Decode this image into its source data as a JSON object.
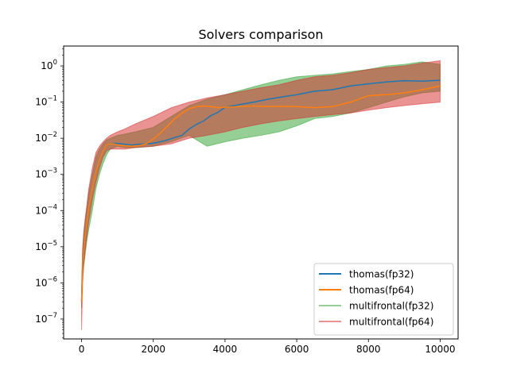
{
  "chart_data": {
    "type": "line",
    "title": "Solvers comparison",
    "xlabel": "",
    "ylabel": "",
    "xlim": [
      -500,
      10500
    ],
    "ylim_log10": [
      -7.55,
      0.55
    ],
    "y_scale": "log",
    "grid": false,
    "legend_placement": "lower-right",
    "x_ticks": [
      {
        "value": 0,
        "label": "0"
      },
      {
        "value": 2000,
        "label": "2000"
      },
      {
        "value": 4000,
        "label": "4000"
      },
      {
        "value": 6000,
        "label": "6000"
      },
      {
        "value": 8000,
        "label": "8000"
      },
      {
        "value": 10000,
        "label": "10000"
      }
    ],
    "y_ticks": [
      {
        "exp": -7,
        "label": "10",
        "sup": "−7"
      },
      {
        "exp": -6,
        "label": "10",
        "sup": "−6"
      },
      {
        "exp": -5,
        "label": "10",
        "sup": "−5"
      },
      {
        "exp": -4,
        "label": "10",
        "sup": "−4"
      },
      {
        "exp": -3,
        "label": "10",
        "sup": "−3"
      },
      {
        "exp": -2,
        "label": "10",
        "sup": "−2"
      },
      {
        "exp": -1,
        "label": "10",
        "sup": "−1"
      },
      {
        "exp": 0,
        "label": "10",
        "sup": "0"
      }
    ],
    "series": [
      {
        "name": "thomas(fp32)",
        "color": "#1f77b4",
        "alpha": 1,
        "x": [
          0,
          30,
          60,
          100,
          150,
          200,
          300,
          400,
          500,
          600,
          700,
          800,
          900,
          1000,
          1200,
          1400,
          1600,
          1800,
          2000,
          2200,
          2400,
          2600,
          2800,
          3000,
          3200,
          3400,
          3600,
          3800,
          4000,
          4400,
          4800,
          5200,
          5600,
          6000,
          6500,
          7000,
          7500,
          8000,
          8500,
          9000,
          9500,
          10000
        ],
        "y": [
          3e-07,
          3e-06,
          8e-06,
          2e-05,
          5e-05,
          0.00012,
          0.0004,
          0.0012,
          0.0025,
          0.0045,
          0.0065,
          0.007,
          0.0072,
          0.0072,
          0.0068,
          0.0065,
          0.0068,
          0.007,
          0.0073,
          0.008,
          0.009,
          0.0105,
          0.012,
          0.018,
          0.024,
          0.03,
          0.042,
          0.052,
          0.072,
          0.085,
          0.1,
          0.12,
          0.14,
          0.16,
          0.2,
          0.22,
          0.28,
          0.32,
          0.36,
          0.39,
          0.38,
          0.4
        ]
      },
      {
        "name": "thomas(fp64)",
        "color": "#ff7f0e",
        "alpha": 1,
        "x": [
          0,
          30,
          60,
          100,
          150,
          200,
          300,
          400,
          500,
          600,
          700,
          800,
          900,
          1000,
          1200,
          1400,
          1600,
          1800,
          2000,
          2200,
          2400,
          2600,
          2800,
          3000,
          3200,
          3400,
          3600,
          3800,
          4000,
          4400,
          4800,
          5200,
          5600,
          6000,
          6500,
          7000,
          7500,
          8000,
          8500,
          9000,
          9500,
          10000
        ],
        "y": [
          3e-07,
          3e-06,
          8e-06,
          2e-05,
          5e-05,
          0.00012,
          0.0004,
          0.0012,
          0.0025,
          0.0045,
          0.0065,
          0.007,
          0.007,
          0.0065,
          0.0062,
          0.006,
          0.0062,
          0.007,
          0.0095,
          0.014,
          0.022,
          0.035,
          0.05,
          0.065,
          0.075,
          0.078,
          0.075,
          0.07,
          0.072,
          0.075,
          0.078,
          0.075,
          0.076,
          0.075,
          0.07,
          0.075,
          0.1,
          0.15,
          0.16,
          0.18,
          0.22,
          0.28
        ]
      },
      {
        "name": "multifrontal(fp32)",
        "color": "#2ca02c",
        "alpha": 0.5,
        "band": true,
        "x": [
          0,
          30,
          60,
          100,
          150,
          200,
          300,
          400,
          500,
          600,
          700,
          800,
          1000,
          1200,
          1500,
          2000,
          2500,
          3000,
          3500,
          4000,
          4500,
          5000,
          5500,
          6000,
          6500,
          7000,
          7500,
          8000,
          8500,
          9000,
          9500,
          10000
        ],
        "y_low": [
          2e-07,
          1.5e-06,
          3e-06,
          6e-06,
          1.5e-05,
          3e-05,
          0.0001,
          0.0004,
          0.001,
          0.002,
          0.0035,
          0.005,
          0.006,
          0.0055,
          0.0055,
          0.006,
          0.008,
          0.012,
          0.006,
          0.008,
          0.01,
          0.012,
          0.015,
          0.022,
          0.035,
          0.04,
          0.05,
          0.07,
          0.1,
          0.14,
          0.18,
          0.2
        ],
        "y_high": [
          6e-07,
          8e-06,
          2e-05,
          5e-05,
          0.00012,
          0.0003,
          0.001,
          0.003,
          0.005,
          0.007,
          0.009,
          0.01,
          0.012,
          0.013,
          0.015,
          0.02,
          0.04,
          0.08,
          0.12,
          0.16,
          0.22,
          0.3,
          0.4,
          0.5,
          0.55,
          0.6,
          0.7,
          0.8,
          1.0,
          1.1,
          1.3,
          1.1
        ]
      },
      {
        "name": "multifrontal(fp64)",
        "color": "#d62728",
        "alpha": 0.5,
        "band": true,
        "x": [
          0,
          30,
          60,
          100,
          150,
          200,
          300,
          400,
          500,
          600,
          700,
          800,
          1000,
          1200,
          1500,
          2000,
          2500,
          3000,
          3500,
          4000,
          4500,
          5000,
          5500,
          6000,
          6500,
          7000,
          7500,
          8000,
          8500,
          9000,
          9500,
          10000
        ],
        "y_low": [
          5e-08,
          1e-06,
          3e-06,
          8e-06,
          2e-05,
          5e-05,
          0.0002,
          0.0006,
          0.0015,
          0.003,
          0.0045,
          0.005,
          0.005,
          0.005,
          0.0055,
          0.006,
          0.007,
          0.01,
          0.012,
          0.015,
          0.02,
          0.025,
          0.03,
          0.035,
          0.04,
          0.045,
          0.05,
          0.06,
          0.07,
          0.08,
          0.09,
          0.1
        ],
        "y_high": [
          7e-07,
          9e-06,
          2.5e-05,
          6e-05,
          0.00015,
          0.0004,
          0.0015,
          0.004,
          0.006,
          0.008,
          0.01,
          0.012,
          0.015,
          0.018,
          0.025,
          0.04,
          0.07,
          0.1,
          0.13,
          0.16,
          0.2,
          0.25,
          0.3,
          0.4,
          0.5,
          0.55,
          0.65,
          0.8,
          0.9,
          1.0,
          1.2,
          1.4
        ]
      }
    ]
  }
}
